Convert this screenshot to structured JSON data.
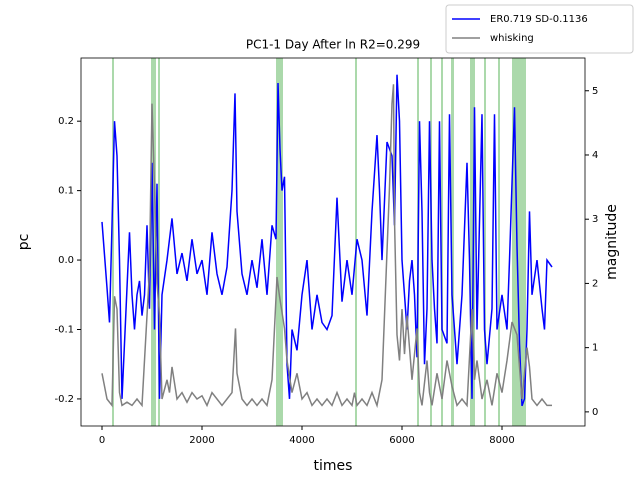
{
  "chart_data": {
    "type": "line",
    "title": "PC1-1 Day After ln R2=0.299",
    "xlabel": "times",
    "ylabel": "pc",
    "y2label": "magnitude",
    "xlim": [
      -420,
      9660
    ],
    "xticks": [
      0,
      2000,
      4000,
      6000,
      8000
    ],
    "ylim": [
      -0.239,
      0.291
    ],
    "yticks": [
      -0.2,
      -0.1,
      {
        "value": 0,
        "label": "0.0"
      },
      0.1,
      0.2
    ],
    "y2lim": [
      -0.22,
      5.51
    ],
    "y2ticks": [
      0,
      1,
      2,
      3,
      4,
      5
    ],
    "legend": "upper right",
    "span_color": "#2ca02c",
    "spans": [
      [
        200,
        240
      ],
      [
        980,
        1080
      ],
      [
        1120,
        1160
      ],
      [
        3480,
        3620
      ],
      [
        5060,
        5100
      ],
      [
        6300,
        6340
      ],
      [
        6560,
        6600
      ],
      [
        6780,
        6820
      ],
      [
        6980,
        7040
      ],
      [
        7360,
        7460
      ],
      [
        7640,
        7680
      ],
      [
        7920,
        7960
      ],
      [
        8200,
        8480
      ]
    ],
    "series": [
      {
        "name": "ER0.719 SD-0.1136",
        "color": "#0000ff",
        "axis": "y",
        "x": [
          0,
          100,
          150,
          200,
          250,
          300,
          350,
          400,
          450,
          500,
          550,
          600,
          650,
          700,
          750,
          800,
          850,
          900,
          950,
          1000,
          1050,
          1100,
          1150,
          1200,
          1300,
          1400,
          1500,
          1600,
          1700,
          1800,
          1900,
          2000,
          2100,
          2200,
          2300,
          2400,
          2500,
          2600,
          2660,
          2700,
          2800,
          2900,
          3000,
          3100,
          3200,
          3300,
          3400,
          3480,
          3520,
          3560,
          3600,
          3650,
          3700,
          3750,
          3800,
          3900,
          4000,
          4100,
          4200,
          4300,
          4400,
          4500,
          4600,
          4700,
          4800,
          4900,
          5000,
          5100,
          5200,
          5300,
          5400,
          5500,
          5550,
          5600,
          5700,
          5800,
          5850,
          5900,
          5950,
          6000,
          6050,
          6100,
          6150,
          6200,
          6250,
          6300,
          6350,
          6400,
          6450,
          6500,
          6550,
          6600,
          6650,
          6700,
          6750,
          6800,
          6900,
          6950,
          7000,
          7100,
          7200,
          7300,
          7350,
          7400,
          7450,
          7500,
          7600,
          7650,
          7700,
          7800,
          7850,
          7900,
          8000,
          8100,
          8150,
          8250,
          8300,
          8350,
          8400,
          8450,
          8500,
          8550,
          8600,
          8700,
          8800,
          8850,
          8900,
          9000
        ],
        "values": [
          0.055,
          -0.04,
          -0.09,
          0.05,
          0.2,
          0.15,
          0.0,
          -0.2,
          -0.12,
          -0.04,
          0.04,
          -0.05,
          -0.1,
          -0.05,
          -0.03,
          -0.08,
          -0.05,
          0.05,
          -0.07,
          0.14,
          -0.1,
          0.11,
          -0.2,
          -0.05,
          0.0,
          0.06,
          -0.02,
          0.01,
          -0.03,
          0.03,
          -0.02,
          0.0,
          -0.05,
          0.04,
          -0.02,
          -0.05,
          -0.01,
          0.1,
          0.24,
          0.07,
          -0.02,
          -0.05,
          0.0,
          -0.04,
          0.03,
          -0.05,
          0.05,
          0.03,
          0.255,
          0.16,
          0.1,
          0.12,
          -0.15,
          -0.2,
          -0.1,
          -0.13,
          -0.05,
          0.0,
          -0.1,
          -0.05,
          -0.09,
          -0.1,
          -0.08,
          0.09,
          -0.06,
          0.0,
          -0.05,
          0.03,
          0.0,
          -0.08,
          0.07,
          0.18,
          0.1,
          0.0,
          0.17,
          0.15,
          0.05,
          0.267,
          0.2,
          0.0,
          -0.05,
          -0.1,
          -0.03,
          0.0,
          -0.05,
          -0.14,
          0.2,
          0.07,
          -0.15,
          -0.07,
          0.2,
          0.0,
          -0.07,
          -0.12,
          0.2,
          -0.1,
          -0.12,
          0.21,
          -0.05,
          -0.15,
          -0.05,
          0.14,
          0.0,
          -0.2,
          0.22,
          -0.1,
          0.21,
          -0.1,
          -0.15,
          -0.07,
          0.21,
          -0.1,
          -0.05,
          -0.1,
          0.0,
          0.22,
          0.02,
          -0.12,
          -0.21,
          -0.2,
          -0.1,
          0.07,
          -0.05,
          0.0,
          -0.07,
          -0.1,
          0.0,
          -0.01
        ]
      },
      {
        "name": "whisking",
        "color": "#808080",
        "axis": "y2",
        "x": [
          0,
          100,
          200,
          250,
          300,
          350,
          400,
          500,
          600,
          700,
          800,
          900,
          950,
          1000,
          1050,
          1100,
          1150,
          1200,
          1300,
          1350,
          1400,
          1500,
          1600,
          1700,
          1800,
          1900,
          2000,
          2100,
          2200,
          2300,
          2400,
          2500,
          2600,
          2670,
          2700,
          2800,
          2900,
          3000,
          3100,
          3200,
          3300,
          3400,
          3500,
          3550,
          3650,
          3700,
          3800,
          3900,
          4000,
          4100,
          4200,
          4300,
          4400,
          4500,
          4600,
          4700,
          4800,
          4900,
          5000,
          5050,
          5100,
          5200,
          5300,
          5400,
          5500,
          5600,
          5700,
          5750,
          5800,
          5830,
          5850,
          5900,
          5950,
          6000,
          6050,
          6100,
          6200,
          6300,
          6350,
          6400,
          6500,
          6550,
          6600,
          6700,
          6800,
          6900,
          7000,
          7100,
          7200,
          7300,
          7400,
          7450,
          7500,
          7600,
          7700,
          7800,
          7900,
          8000,
          8100,
          8200,
          8300,
          8400,
          8500,
          8550,
          8600,
          8700,
          8800,
          8900,
          9000
        ],
        "values": [
          0.6,
          0.2,
          0.1,
          1.8,
          1.6,
          0.3,
          0.1,
          0.15,
          0.1,
          0.2,
          0.1,
          1.5,
          2.2,
          4.8,
          3.5,
          2.0,
          1.5,
          0.2,
          0.5,
          0.3,
          0.7,
          0.2,
          0.3,
          0.15,
          0.3,
          0.2,
          0.25,
          0.1,
          0.3,
          0.2,
          0.1,
          0.2,
          0.3,
          1.3,
          0.6,
          0.2,
          0.1,
          0.2,
          0.1,
          0.2,
          0.1,
          0.5,
          2.1,
          1.8,
          1.3,
          0.8,
          0.3,
          0.6,
          0.2,
          0.3,
          0.1,
          0.2,
          0.1,
          0.2,
          0.1,
          0.3,
          0.1,
          0.2,
          0.1,
          0.3,
          0.1,
          0.2,
          0.1,
          0.3,
          0.1,
          0.5,
          2.5,
          3.5,
          4.8,
          5.1,
          3.0,
          1.2,
          0.8,
          1.6,
          0.9,
          1.5,
          0.5,
          1.3,
          0.3,
          0.1,
          0.8,
          0.3,
          0.1,
          0.6,
          0.2,
          0.8,
          0.4,
          0.1,
          0.2,
          0.1,
          1.6,
          0.5,
          0.8,
          0.2,
          0.5,
          0.1,
          0.6,
          0.3,
          0.8,
          1.4,
          1.2,
          0.2,
          1.0,
          0.7,
          0.2,
          0.1,
          0.2,
          0.1,
          0.1
        ]
      }
    ]
  }
}
